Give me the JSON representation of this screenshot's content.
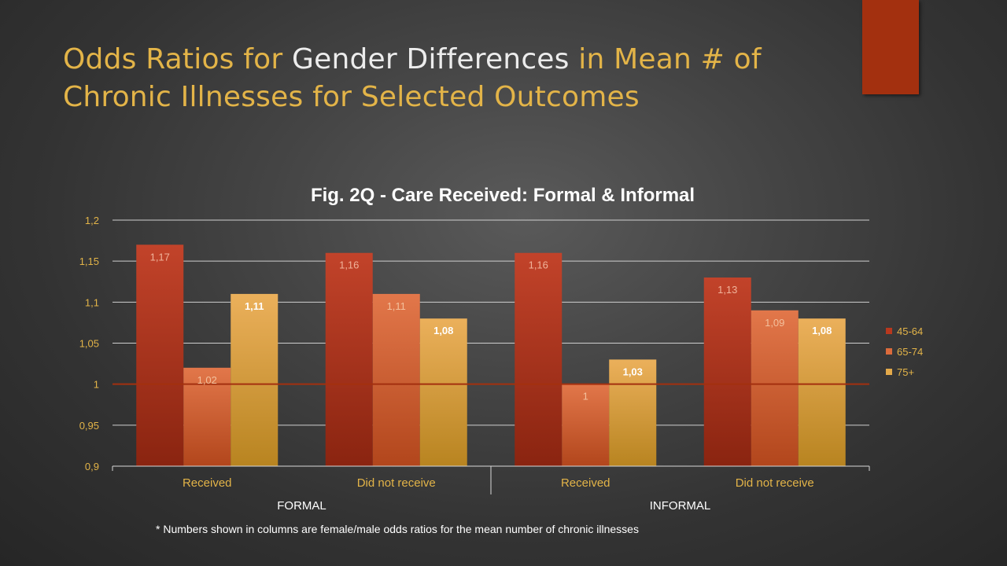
{
  "slide": {
    "title_part1": "Odds Ratios for ",
    "title_part2": "Gender Differences",
    "title_part3": " in Mean # of",
    "title_line2": "Chronic Illnesses for Selected Outcomes",
    "footnote": "* Numbers shown in columns are female/male odds ratios for the mean number of chronic illnesses"
  },
  "colors": {
    "title_accent": "#e3b448",
    "accent_block": "#a3300f",
    "series_45_64": "#b8381e",
    "series_65_74": "#dc6b3c",
    "series_75plus": "#e3a94a",
    "reference_line": "#a3300f"
  },
  "chart_data": {
    "type": "bar",
    "title": "Fig. 2Q - Care Received: Formal & Informal",
    "categories": [
      "Received",
      "Did not receive",
      "Received",
      "Did not receive"
    ],
    "groups": [
      {
        "label": "FORMAL",
        "categories": [
          "Received",
          "Did not receive"
        ]
      },
      {
        "label": "INFORMAL",
        "categories": [
          "Received",
          "Did not receive"
        ]
      }
    ],
    "series": [
      {
        "name": "45-64",
        "values": [
          1.17,
          1.16,
          1.16,
          1.13
        ],
        "labels": [
          "1,17",
          "1,16",
          "1,16",
          "1,13"
        ]
      },
      {
        "name": "65-74",
        "values": [
          1.02,
          1.11,
          1.0,
          1.09
        ],
        "labels": [
          "1,02",
          "1,11",
          "1",
          "1,09"
        ]
      },
      {
        "name": "75+",
        "values": [
          1.11,
          1.08,
          1.03,
          1.08
        ],
        "labels": [
          "1,11",
          "1,08",
          "1,03",
          "1,08"
        ]
      }
    ],
    "yticks": [
      {
        "value": 0.9,
        "label": "0,9"
      },
      {
        "value": 0.95,
        "label": "0,95"
      },
      {
        "value": 1.0,
        "label": "1"
      },
      {
        "value": 1.05,
        "label": "1,05"
      },
      {
        "value": 1.1,
        "label": "1,1"
      },
      {
        "value": 1.15,
        "label": "1,15"
      },
      {
        "value": 1.2,
        "label": "1,2"
      }
    ],
    "ylim": [
      0.9,
      1.2
    ],
    "reference_line": 1.0,
    "grid": true,
    "legend_position": "right",
    "xlabel": "",
    "ylabel": ""
  }
}
